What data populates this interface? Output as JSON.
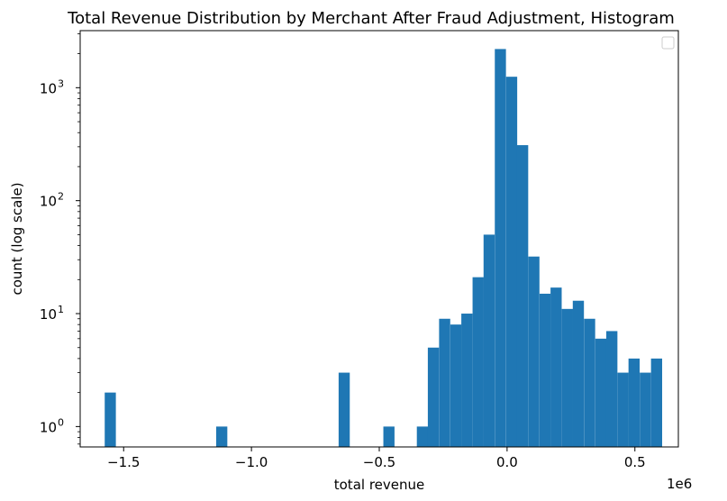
{
  "chart_data": {
    "type": "bar",
    "title": "Total Revenue Distribution by Merchant After Fraud Adjustment, Histogram",
    "xlabel": "total revenue",
    "ylabel": "count (log scale)",
    "x_offset_label": "1e6",
    "x_scale": "linear",
    "y_scale": "log",
    "xlim": [
      -1.67,
      0.67
    ],
    "ylim": [
      0.66,
      3200
    ],
    "x_ticks": [
      {
        "value": -1.5,
        "label": "−1.5"
      },
      {
        "value": -1.0,
        "label": "−1.0"
      },
      {
        "value": -0.5,
        "label": "−0.5"
      },
      {
        "value": 0.0,
        "label": "0.0"
      },
      {
        "value": 0.5,
        "label": "0.5"
      }
    ],
    "y_ticks": [
      {
        "value": 1,
        "base": "10",
        "exp": "0"
      },
      {
        "value": 10,
        "base": "10",
        "exp": "1"
      },
      {
        "value": 100,
        "base": "10",
        "exp": "2"
      },
      {
        "value": 1000,
        "base": "10",
        "exp": "3"
      }
    ],
    "bar_color": "#1f77b4",
    "legend": {
      "position": "top-right",
      "entries": []
    },
    "grid": false,
    "bin_width": 0.0436,
    "bins": [
      {
        "x0": -1.574,
        "count": 2
      },
      {
        "x0": -1.138,
        "count": 1
      },
      {
        "x0": -0.659,
        "count": 3
      },
      {
        "x0": -0.484,
        "count": 1
      },
      {
        "x0": -0.353,
        "count": 1
      },
      {
        "x0": -0.31,
        "count": 5
      },
      {
        "x0": -0.266,
        "count": 9
      },
      {
        "x0": -0.222,
        "count": 8
      },
      {
        "x0": -0.179,
        "count": 10
      },
      {
        "x0": -0.135,
        "count": 21
      },
      {
        "x0": -0.092,
        "count": 50
      },
      {
        "x0": -0.048,
        "count": 2200
      },
      {
        "x0": -0.004,
        "count": 1250
      },
      {
        "x0": 0.039,
        "count": 310
      },
      {
        "x0": 0.083,
        "count": 32
      },
      {
        "x0": 0.127,
        "count": 15
      },
      {
        "x0": 0.17,
        "count": 17
      },
      {
        "x0": 0.214,
        "count": 11
      },
      {
        "x0": 0.257,
        "count": 13
      },
      {
        "x0": 0.301,
        "count": 9
      },
      {
        "x0": 0.345,
        "count": 6
      },
      {
        "x0": 0.388,
        "count": 7
      },
      {
        "x0": 0.432,
        "count": 3
      },
      {
        "x0": 0.475,
        "count": 4
      },
      {
        "x0": 0.519,
        "count": 3
      },
      {
        "x0": 0.563,
        "count": 4
      }
    ]
  }
}
